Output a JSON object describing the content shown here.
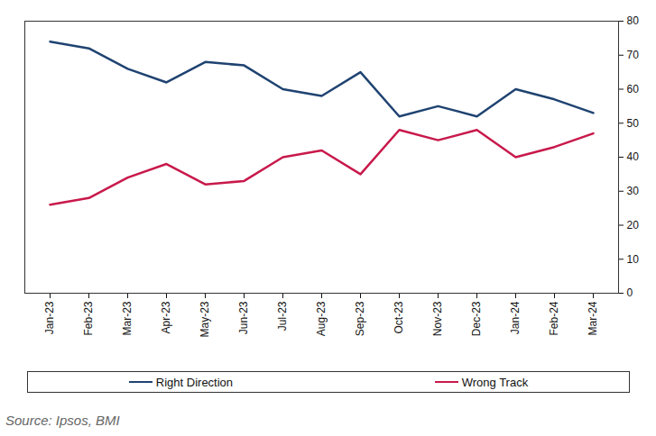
{
  "chart_data": {
    "type": "line",
    "caption": "Source: Ipsos, BMI",
    "categories": [
      "Jan-23",
      "Feb-23",
      "Mar-23",
      "Apr-23",
      "May-23",
      "Jun-23",
      "Jul-23",
      "Aug-23",
      "Sep-23",
      "Oct-23",
      "Nov-23",
      "Dec-23",
      "Jan-24",
      "Feb-24",
      "Mar-24"
    ],
    "series": [
      {
        "name": "Right Direction",
        "color": "#1f4371",
        "values": [
          74,
          72,
          66,
          62,
          68,
          67,
          60,
          58,
          65,
          52,
          55,
          52,
          60,
          57,
          53
        ]
      },
      {
        "name": "Wrong Track",
        "color": "#c8194b",
        "values": [
          26,
          28,
          34,
          38,
          32,
          33,
          40,
          42,
          35,
          48,
          45,
          48,
          40,
          43,
          47
        ]
      }
    ],
    "ylim": [
      0,
      80
    ],
    "yticks": [
      0,
      10,
      20,
      30,
      40,
      50,
      60,
      70,
      80
    ],
    "legend": "bottom"
  }
}
